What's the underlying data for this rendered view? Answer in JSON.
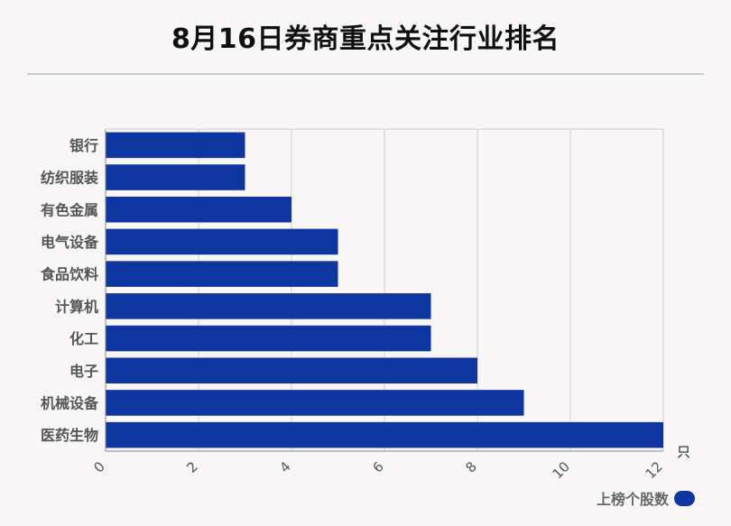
{
  "title": "8月16日券商重点关注行业排名",
  "legend": {
    "label": "上榜个股数"
  },
  "colors": {
    "bar": "#0d36a0",
    "grid": "#cfcfcf",
    "background": "#f9f6f7"
  },
  "chart_data": {
    "type": "bar",
    "orientation": "horizontal",
    "categories": [
      "银行",
      "纺织服装",
      "有色金属",
      "电气设备",
      "食品饮料",
      "计算机",
      "化工",
      "电子",
      "机械设备",
      "医药生物"
    ],
    "series": [
      {
        "name": "上榜个股数",
        "values": [
          3,
          3,
          4,
          5,
          5,
          7,
          7,
          8,
          9,
          12
        ]
      }
    ],
    "xticks": [
      "0",
      "2",
      "4",
      "6",
      "8",
      "10",
      "12"
    ],
    "xlim": [
      0,
      12
    ],
    "unit": "只",
    "grid": true,
    "legend_position": "bottom-right"
  }
}
